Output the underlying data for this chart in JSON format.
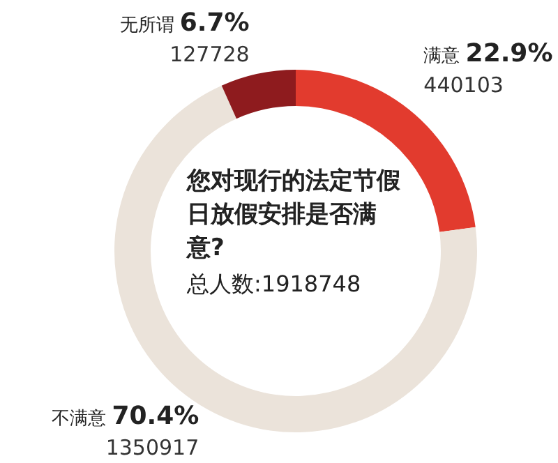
{
  "chart_data": {
    "type": "donut",
    "title": "您对现行的法定节假日放假安排是否满意?",
    "categories": [
      "满意",
      "不满意",
      "无所谓"
    ],
    "values": [
      22.9,
      70.4,
      6.7
    ],
    "value_labels": [
      "22.9%",
      "70.4%",
      "6.7%"
    ],
    "colors": [
      "#e23b2e",
      "#ebe3da",
      "#8e1b1e"
    ],
    "annotations": [
      {
        "text": "440103",
        "x": "满意"
      },
      {
        "text": "1350917",
        "x": "不满意"
      },
      {
        "text": "127728",
        "x": "无所谓"
      },
      "总人数:1918748"
    ]
  }
}
